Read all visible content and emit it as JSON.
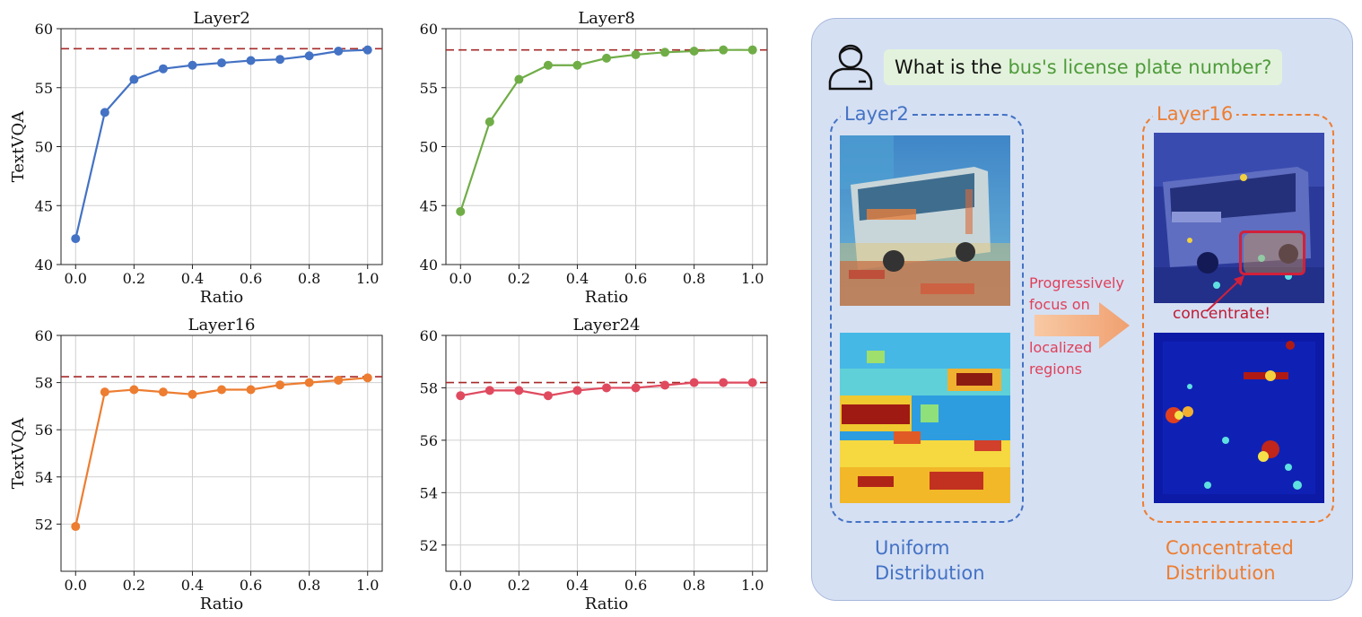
{
  "chart_data": [
    {
      "type": "line",
      "title": "Layer2",
      "xlabel": "Ratio",
      "ylabel": "TextVQA",
      "x": [
        0.0,
        0.1,
        0.2,
        0.3,
        0.4,
        0.5,
        0.6,
        0.7,
        0.8,
        0.9,
        1.0
      ],
      "series": [
        {
          "name": "Layer2",
          "values": [
            42.2,
            52.9,
            55.7,
            56.6,
            56.9,
            57.1,
            57.3,
            57.4,
            57.7,
            58.1,
            58.2
          ],
          "color": "#4472c4"
        }
      ],
      "baseline": 58.3,
      "ylim": [
        40,
        60
      ],
      "xlim": [
        -0.05,
        1.05
      ],
      "xticks": [
        "0.0",
        "0.2",
        "0.4",
        "0.6",
        "0.8",
        "1.0"
      ],
      "yticks": [
        "40",
        "45",
        "50",
        "55",
        "60"
      ],
      "grid": true
    },
    {
      "type": "line",
      "title": "Layer8",
      "xlabel": "Ratio",
      "ylabel": "",
      "x": [
        0.0,
        0.1,
        0.2,
        0.3,
        0.4,
        0.5,
        0.6,
        0.7,
        0.8,
        0.9,
        1.0
      ],
      "series": [
        {
          "name": "Layer8",
          "values": [
            44.5,
            52.1,
            55.7,
            56.9,
            56.9,
            57.5,
            57.8,
            58.0,
            58.1,
            58.2,
            58.2
          ],
          "color": "#70ad47"
        }
      ],
      "baseline": 58.2,
      "ylim": [
        40,
        60
      ],
      "xlim": [
        -0.05,
        1.05
      ],
      "xticks": [
        "0.0",
        "0.2",
        "0.4",
        "0.6",
        "0.8",
        "1.0"
      ],
      "yticks": [
        "40",
        "45",
        "50",
        "55",
        "60"
      ],
      "grid": true
    },
    {
      "type": "line",
      "title": "Layer16",
      "xlabel": "Ratio",
      "ylabel": "TextVQA",
      "x": [
        0.0,
        0.1,
        0.2,
        0.3,
        0.4,
        0.5,
        0.6,
        0.7,
        0.8,
        0.9,
        1.0
      ],
      "series": [
        {
          "name": "Layer16",
          "values": [
            51.9,
            57.6,
            57.7,
            57.6,
            57.5,
            57.7,
            57.7,
            57.9,
            58.0,
            58.1,
            58.2
          ],
          "color": "#ed7d31"
        }
      ],
      "baseline": 58.25,
      "ylim": [
        50,
        60
      ],
      "xlim": [
        -0.05,
        1.05
      ],
      "xticks": [
        "0.0",
        "0.2",
        "0.4",
        "0.6",
        "0.8",
        "1.0"
      ],
      "yticks": [
        "52",
        "54",
        "56",
        "58",
        "60"
      ],
      "grid": true
    },
    {
      "type": "line",
      "title": "Layer24",
      "xlabel": "Ratio",
      "ylabel": "",
      "x": [
        0.0,
        0.1,
        0.2,
        0.3,
        0.4,
        0.5,
        0.6,
        0.7,
        0.8,
        0.9,
        1.0
      ],
      "series": [
        {
          "name": "Layer24",
          "values": [
            57.7,
            57.9,
            57.9,
            57.7,
            57.9,
            58.0,
            58.0,
            58.1,
            58.2,
            58.2,
            58.2
          ],
          "color": "#e04a5f"
        }
      ],
      "baseline": 58.2,
      "ylim": [
        51,
        60
      ],
      "xlim": [
        -0.05,
        1.05
      ],
      "xticks": [
        "0.0",
        "0.2",
        "0.4",
        "0.6",
        "0.8",
        "1.0"
      ],
      "yticks": [
        "52",
        "54",
        "56",
        "58",
        "60"
      ],
      "grid": true
    }
  ],
  "illustration": {
    "question_prefix": "What is the",
    "question_highlight": "bus's license plate number?",
    "left_box_label": "Layer2",
    "right_box_label": "Layer16",
    "arrow_text_top_1": "Progressively",
    "arrow_text_top_2": "focus on",
    "arrow_text_bottom_1": "localized",
    "arrow_text_bottom_2": "regions",
    "concentrate_label": "concentrate!",
    "left_caption_1": "Uniform",
    "left_caption_2": "Distribution",
    "right_caption_1": "Concentrated",
    "right_caption_2": "Distribution",
    "colors": {
      "blue": "#4472c4",
      "orange": "#ed7d31",
      "green": "#4d9b3a",
      "red": "#d0213b"
    }
  }
}
